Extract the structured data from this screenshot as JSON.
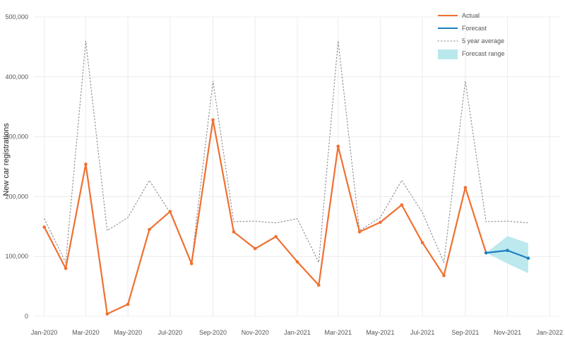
{
  "chart_data": {
    "type": "line",
    "ylabel": "New car registrations",
    "xlabel": "",
    "title": "",
    "ylim": [
      0,
      500000
    ],
    "y_ticks": [
      0,
      100000,
      200000,
      300000,
      400000,
      500000
    ],
    "y_tick_labels": [
      "0",
      "100,000",
      "200,000",
      "300,000",
      "400,000",
      "500,000"
    ],
    "x_range": [
      "2019-12-17",
      "2022-01-15"
    ],
    "x_ticks": [
      "2020-01-01",
      "2020-03-01",
      "2020-05-01",
      "2020-07-01",
      "2020-09-01",
      "2020-11-01",
      "2021-01-01",
      "2021-03-01",
      "2021-05-01",
      "2021-07-01",
      "2021-09-01",
      "2021-11-01",
      "2022-01-01"
    ],
    "x_tick_labels": [
      "Jan-2020",
      "Mar-2020",
      "May-2020",
      "Jul-2020",
      "Sep-2020",
      "Nov-2020",
      "Jan-2021",
      "Mar-2021",
      "May-2021",
      "Jul-2021",
      "Sep-2021",
      "Nov-2021",
      "Jan-2022"
    ],
    "grid": true,
    "legend_position": "top-right",
    "series": [
      {
        "name": "Actual",
        "color": "#f07030",
        "style": "solid",
        "x": [
          "2020-01-01",
          "2020-02-01",
          "2020-03-01",
          "2020-04-01",
          "2020-05-01",
          "2020-06-01",
          "2020-07-01",
          "2020-08-01",
          "2020-09-01",
          "2020-10-01",
          "2020-11-01",
          "2020-12-01",
          "2021-01-01",
          "2021-02-01",
          "2021-03-01",
          "2021-04-01",
          "2021-05-01",
          "2021-06-01",
          "2021-07-01",
          "2021-08-01",
          "2021-09-01",
          "2021-10-01"
        ],
        "values": [
          149000,
          80000,
          254000,
          4000,
          20000,
          145000,
          175000,
          88000,
          328000,
          141000,
          113000,
          133000,
          91000,
          52000,
          284000,
          141000,
          157000,
          186000,
          123000,
          68000,
          215000,
          106000
        ]
      },
      {
        "name": "Forecast",
        "color": "#1f7ec4",
        "style": "solid",
        "x": [
          "2021-10-01",
          "2021-11-01",
          "2021-12-01"
        ],
        "values": [
          106000,
          110000,
          97000
        ]
      },
      {
        "name": "5 year average",
        "color": "#8a8a8a",
        "style": "dotted",
        "x": [
          "2020-01-01",
          "2020-02-01",
          "2020-03-01",
          "2020-04-01",
          "2020-05-01",
          "2020-06-01",
          "2020-07-01",
          "2020-08-01",
          "2020-09-01",
          "2020-10-01",
          "2020-11-01",
          "2020-12-01",
          "2021-01-01",
          "2021-02-01",
          "2021-03-01",
          "2021-04-01",
          "2021-05-01",
          "2021-06-01",
          "2021-07-01",
          "2021-08-01",
          "2021-09-01",
          "2021-10-01",
          "2021-11-01",
          "2021-12-01"
        ],
        "values": [
          163000,
          90000,
          460000,
          143000,
          165000,
          227000,
          173000,
          90000,
          393000,
          158000,
          159000,
          156000,
          163000,
          90000,
          460000,
          143000,
          165000,
          227000,
          173000,
          90000,
          393000,
          158000,
          159000,
          156000
        ]
      },
      {
        "name": "Forecast range",
        "color": "#b8e8ec",
        "style": "band",
        "x": [
          "2021-10-01",
          "2021-11-01",
          "2021-12-01"
        ],
        "lower": [
          106000,
          88000,
          72000
        ],
        "upper": [
          106000,
          134000,
          122000
        ]
      }
    ]
  }
}
